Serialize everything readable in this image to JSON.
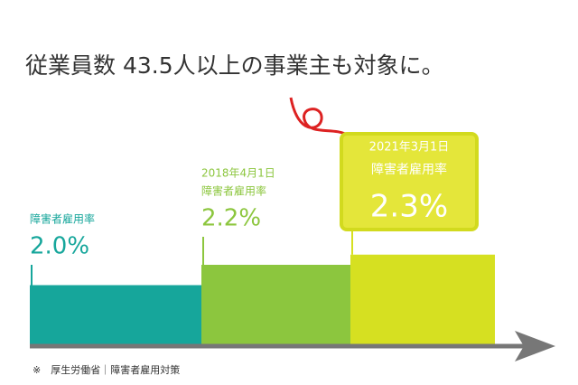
{
  "chart_data": {
    "type": "step-bar",
    "title": "従業員数 43.5人以上の事業主も対象に。",
    "categories": [
      null,
      "2018年4月1日",
      "2021年3月1日"
    ],
    "series": [
      {
        "name": "障害者雇用率",
        "values": [
          2.0,
          2.2,
          2.3
        ],
        "value_labels": [
          "2.0%",
          "2.2%",
          "2.3%"
        ],
        "colors": [
          "#16a69b",
          "#8cc63e",
          "#d6e021"
        ]
      }
    ],
    "ylim": [
      1.4,
      2.6
    ],
    "highlight": 2,
    "footnote": "※　厚生労働省｜障害者雇用対策"
  }
}
